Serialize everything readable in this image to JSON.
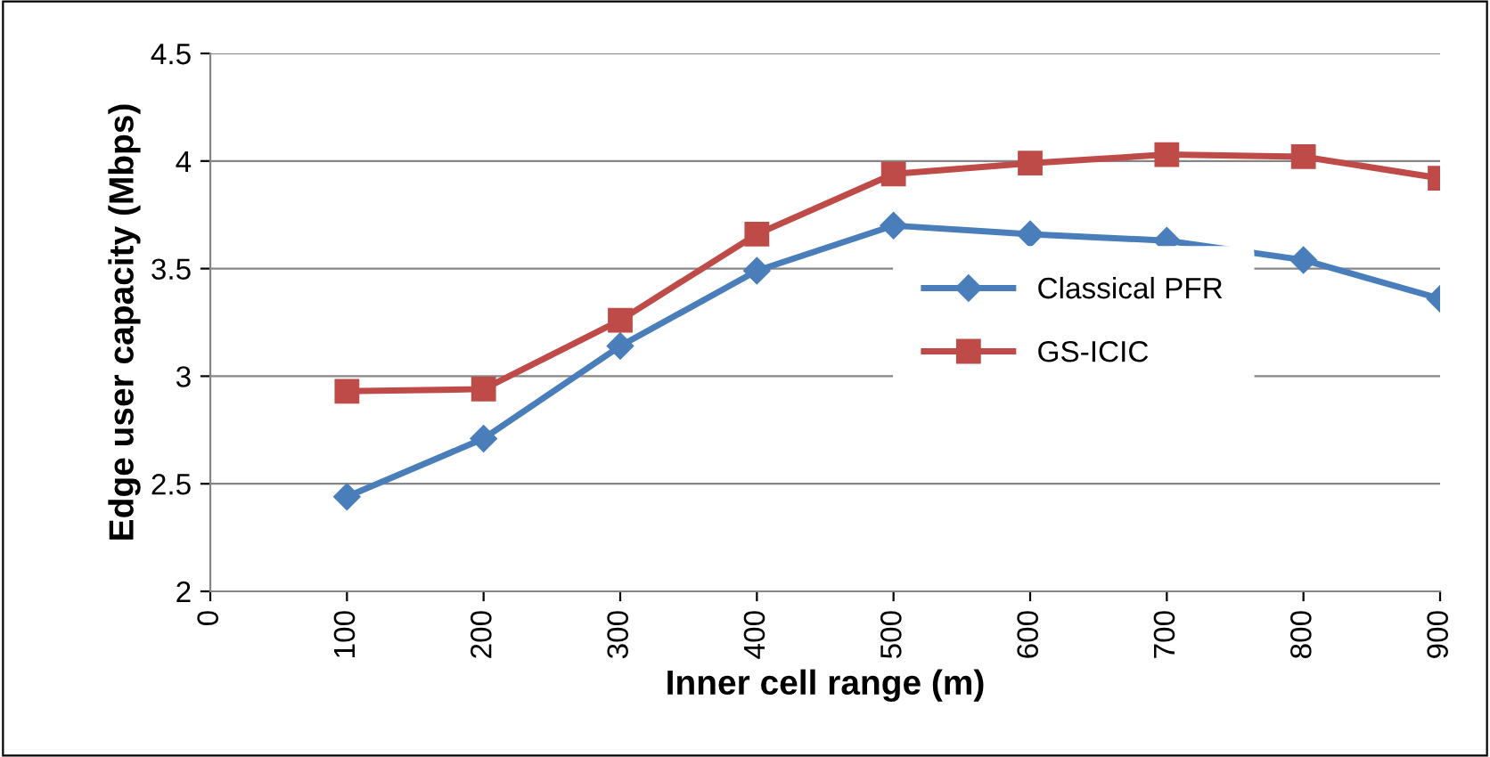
{
  "chart_data": {
    "type": "line",
    "xlabel": "Inner cell range (m)",
    "ylabel": "Edge user capacity (Mbps)",
    "x": [
      100,
      200,
      300,
      400,
      500,
      600,
      700,
      800,
      900
    ],
    "xlim": [
      0,
      900
    ],
    "xticks": [
      0,
      100,
      200,
      300,
      400,
      500,
      600,
      700,
      800,
      900
    ],
    "ylim": [
      2,
      4.5
    ],
    "yticks": [
      2,
      2.5,
      3,
      3.5,
      4,
      4.5
    ],
    "grid": "y",
    "legend": "right",
    "line_style": "solid",
    "series": [
      {
        "name": "Classical PFR",
        "color": "#4a7ebb",
        "marker": "diamond",
        "values": [
          2.44,
          2.71,
          3.14,
          3.49,
          3.7,
          3.66,
          3.63,
          3.54,
          3.36
        ]
      },
      {
        "name": "GS-ICIC",
        "color": "#be4b48",
        "marker": "square",
        "values": [
          2.93,
          2.94,
          3.26,
          3.66,
          3.94,
          3.99,
          4.03,
          4.02,
          3.92
        ]
      }
    ]
  }
}
